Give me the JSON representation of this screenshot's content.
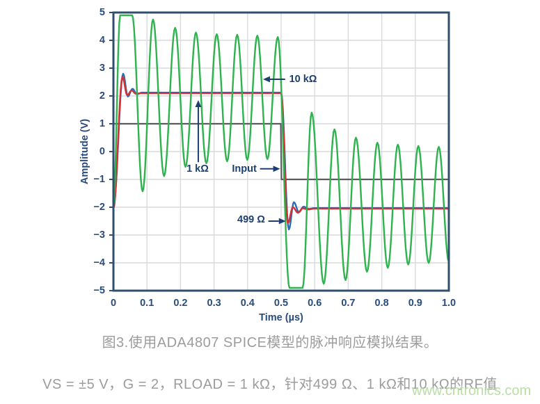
{
  "figure": {
    "caption": "图3.使用ADA4807 SPICE模型的脉冲响应模拟结果。",
    "subcaption": "VS = ±5 V，G = 2，RLOAD = 1 kΩ，针对499 Ω、1 kΩ和10 kΩ的RF值",
    "watermark": "www.cntronics.com"
  },
  "colors": {
    "border": "#304f6e",
    "grid": "#d9dadc",
    "tick_text": "#2a4b7c",
    "annotation": "#1d3f70",
    "trace_green": "#2eb34e",
    "trace_blue": "#2a6cb3",
    "trace_red": "#d62f34",
    "trace_gray": "#5b5b5f",
    "plot_bg": "#ffffff"
  },
  "chart_data": {
    "type": "line",
    "title": "",
    "xlabel": "Time (µs)",
    "ylabel": "Amplitude (V)",
    "xlim": [
      0,
      1
    ],
    "ylim": [
      -5,
      5
    ],
    "grid": true,
    "legend_position": "none (inline arrow annotations)",
    "xticks": {
      "values": [
        0,
        0.1,
        0.2,
        0.3,
        0.4,
        0.5,
        0.6,
        0.7,
        0.8,
        0.9,
        1.0
      ],
      "labels": [
        "0",
        "0.1",
        "0.2",
        "0.3",
        "0.4",
        "0.5",
        "0.6",
        "0.7",
        "0.8",
        "0.9",
        "1.0"
      ]
    },
    "yticks": {
      "values": [
        5,
        4,
        3,
        2,
        1,
        0,
        -1,
        -2,
        -3,
        -4,
        -5
      ],
      "labels": [
        "5",
        "4",
        "3",
        "2",
        "1",
        "0",
        "−1",
        "−2",
        "−3",
        "−4",
        "−5"
      ]
    },
    "series": [
      {
        "name": "Input",
        "color_key": "trace_gray",
        "interp": "linear",
        "width": 2.2,
        "points": [
          [
            0,
            1
          ],
          [
            0.499,
            1
          ],
          [
            0.501,
            -1
          ],
          [
            1,
            -1
          ]
        ]
      },
      {
        "name": "1 kΩ",
        "color_key": "trace_blue",
        "interp": "cosine",
        "width": 2.4,
        "points": [
          [
            0,
            -2
          ],
          [
            0.029,
            2.8
          ],
          [
            0.043,
            1.98
          ],
          [
            0.057,
            2.26
          ],
          [
            0.07,
            2.06
          ],
          [
            0.085,
            2.12
          ],
          [
            0.5,
            2.12
          ],
          [
            0.523,
            -2.8
          ],
          [
            0.538,
            -1.82
          ],
          [
            0.553,
            -2.18
          ],
          [
            0.567,
            -1.98
          ],
          [
            0.583,
            -2.06
          ],
          [
            0.6,
            -2.03
          ],
          [
            1,
            -2.03
          ]
        ]
      },
      {
        "name": "499 Ω",
        "color_key": "trace_red",
        "interp": "cosine",
        "width": 2.4,
        "points": [
          [
            0,
            -2.05
          ],
          [
            0.027,
            2.68
          ],
          [
            0.041,
            2.03
          ],
          [
            0.054,
            2.2
          ],
          [
            0.067,
            2.08
          ],
          [
            0.08,
            2.1
          ],
          [
            0.5,
            2.1
          ],
          [
            0.52,
            -2.58
          ],
          [
            0.535,
            -2.0
          ],
          [
            0.55,
            -2.2
          ],
          [
            0.564,
            -2.04
          ],
          [
            0.58,
            -2.08
          ],
          [
            0.6,
            -2.05
          ],
          [
            1,
            -2.05
          ]
        ]
      },
      {
        "name": "10 kΩ",
        "color_key": "trace_green",
        "interp": "cosine",
        "width": 2.4,
        "points": [
          [
            0,
            -2
          ],
          [
            0.02,
            4.9
          ],
          [
            0.056,
            4.9
          ],
          [
            0.087,
            -1.43
          ],
          [
            0.118,
            4.75
          ],
          [
            0.151,
            -0.88
          ],
          [
            0.184,
            4.45
          ],
          [
            0.215,
            -0.55
          ],
          [
            0.246,
            4.28
          ],
          [
            0.277,
            -0.42
          ],
          [
            0.308,
            4.22
          ],
          [
            0.339,
            -0.35
          ],
          [
            0.369,
            4.2
          ],
          [
            0.399,
            -0.3
          ],
          [
            0.429,
            4.17
          ],
          [
            0.459,
            -0.27
          ],
          [
            0.49,
            4.12
          ],
          [
            0.525,
            -4.9
          ],
          [
            0.564,
            -4.9
          ],
          [
            0.591,
            1.4
          ],
          [
            0.627,
            -4.75
          ],
          [
            0.659,
            0.8
          ],
          [
            0.692,
            -4.62
          ],
          [
            0.723,
            0.5
          ],
          [
            0.756,
            -4.32
          ],
          [
            0.787,
            0.32
          ],
          [
            0.818,
            -4.18
          ],
          [
            0.848,
            0.25
          ],
          [
            0.879,
            -4.06
          ],
          [
            0.909,
            0.2
          ],
          [
            0.94,
            -4.0
          ],
          [
            0.97,
            0.17
          ],
          [
            1.0,
            -3.95
          ]
        ]
      }
    ],
    "annotations": [
      {
        "label": "10 kΩ",
        "dir": "left",
        "tip": [
          0.446,
          2.6
        ],
        "tail": [
          0.512,
          2.6
        ],
        "text": [
          0.524,
          2.6
        ],
        "anchor": "start"
      },
      {
        "label": "1 kΩ",
        "dir": "up",
        "tip": [
          0.253,
          1.85
        ],
        "tail": [
          0.253,
          -0.38
        ],
        "text": [
          0.251,
          -0.625
        ],
        "anchor": "middle"
      },
      {
        "label": "Input",
        "dir": "right",
        "tip": [
          0.497,
          -0.62
        ],
        "tail": [
          0.437,
          -0.62
        ],
        "text": [
          0.427,
          -0.625
        ],
        "anchor": "end"
      },
      {
        "label": "499 Ω",
        "dir": "right",
        "tip": [
          0.514,
          -2.5
        ],
        "tail": [
          0.462,
          -2.5
        ],
        "text": [
          0.452,
          -2.45
        ],
        "anchor": "end"
      }
    ]
  }
}
